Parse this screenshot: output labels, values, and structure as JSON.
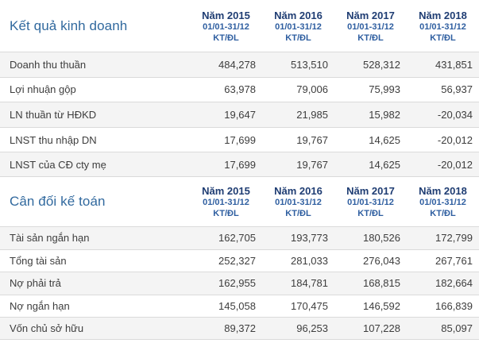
{
  "colors": {
    "section_title_blue": "#31699e",
    "year_header_navy": "#1f3d73",
    "subheader_blue": "#2e5ea0",
    "row_alt_background": "#f4f4f4",
    "row_border": "#dadada",
    "body_text": "#3d3d3d"
  },
  "columns": {
    "years": [
      "Năm 2015",
      "Năm 2016",
      "Năm 2017",
      "Năm 2018"
    ],
    "period": "01/01-31/12",
    "unit": "KT/ĐL"
  },
  "sections": [
    {
      "title": "Kết quả kinh doanh",
      "rows": [
        {
          "label": "Doanh thu thuần",
          "values": [
            "484,278",
            "513,510",
            "528,312",
            "431,851"
          ]
        },
        {
          "label": "Lợi nhuận gộp",
          "values": [
            "63,978",
            "79,006",
            "75,993",
            "56,937"
          ]
        },
        {
          "label": "LN thuần từ HĐKD",
          "values": [
            "19,647",
            "21,985",
            "15,982",
            "-20,034"
          ]
        },
        {
          "label": "LNST thu nhập DN",
          "values": [
            "17,699",
            "19,767",
            "14,625",
            "-20,012"
          ]
        },
        {
          "label": "LNST của CĐ cty mẹ",
          "values": [
            "17,699",
            "19,767",
            "14,625",
            "-20,012"
          ]
        }
      ]
    },
    {
      "title": "Cân đối kế toán",
      "rows": [
        {
          "label": "Tài sản ngắn hạn",
          "values": [
            "162,705",
            "193,773",
            "180,526",
            "172,799"
          ]
        },
        {
          "label": "Tổng tài sản",
          "values": [
            "252,327",
            "281,033",
            "276,043",
            "267,761"
          ]
        },
        {
          "label": "Nợ phải trả",
          "values": [
            "162,955",
            "184,781",
            "168,815",
            "182,664"
          ]
        },
        {
          "label": "Nợ ngắn hạn",
          "values": [
            "145,058",
            "170,475",
            "146,592",
            "166,839"
          ]
        },
        {
          "label": "Vốn chủ sở hữu",
          "values": [
            "89,372",
            "96,253",
            "107,228",
            "85,097"
          ]
        }
      ]
    }
  ]
}
